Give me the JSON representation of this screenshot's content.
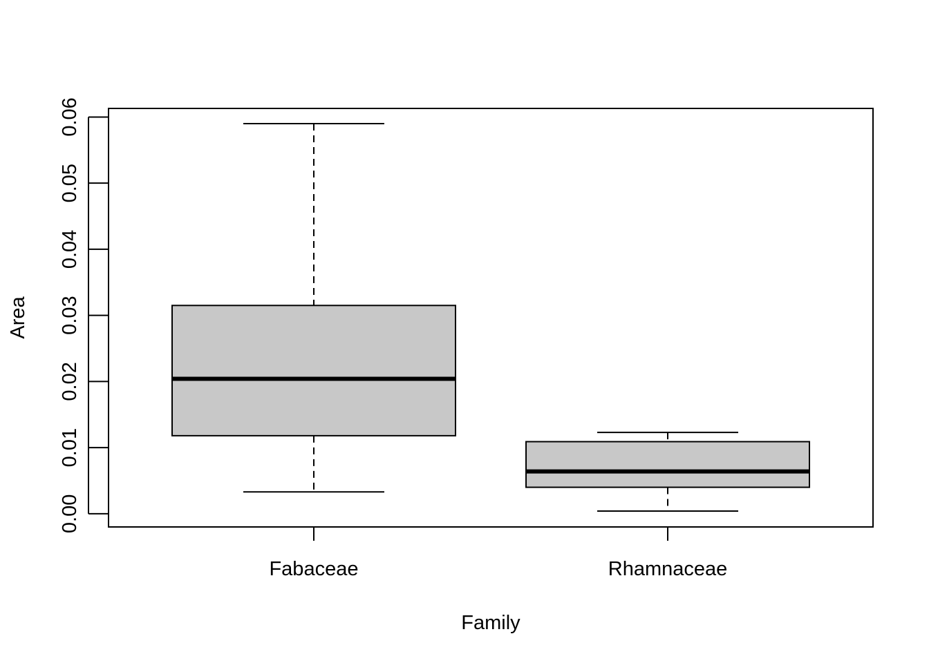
{
  "chart_data": {
    "type": "boxplot",
    "title": "",
    "xlabel": "Family",
    "ylabel": "Area",
    "ylim": [
      -0.002,
      0.0613
    ],
    "yticks": [
      0.0,
      0.01,
      0.02,
      0.03,
      0.04,
      0.05,
      0.06
    ],
    "ytick_labels": [
      "0.00",
      "0.01",
      "0.02",
      "0.03",
      "0.04",
      "0.05",
      "0.06"
    ],
    "grid": false,
    "categories": [
      "Fabaceae",
      "Rhamnaceae"
    ],
    "boxes": [
      {
        "category": "Fabaceae",
        "whisker_low": 0.0033,
        "q1": 0.0118,
        "median": 0.0204,
        "q3": 0.0315,
        "whisker_high": 0.059
      },
      {
        "category": "Rhamnaceae",
        "whisker_low": 0.0004,
        "q1": 0.004,
        "median": 0.0064,
        "q3": 0.0109,
        "whisker_high": 0.0123
      }
    ],
    "colors": {
      "box_fill": "#c8c8c8",
      "stroke": "#000000"
    }
  }
}
